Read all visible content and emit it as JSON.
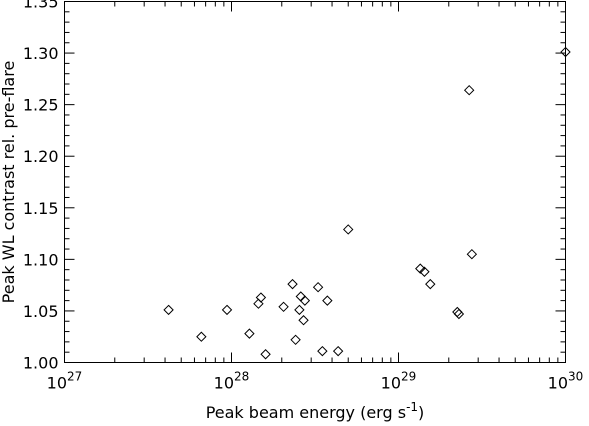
{
  "chart_data": {
    "type": "scatter",
    "title": "",
    "xscale": "log",
    "xlim": [
      1e+27,
      1e+30
    ],
    "ylim": [
      1.0,
      1.35
    ],
    "xlabel": "Peak beam energy (erg s",
    "xlabel_sup": "-1",
    "xlabel_close": ")",
    "ylabel": "Peak WL contrast rel. pre-flare",
    "marker": "diamond",
    "grid": false,
    "x_ticks": [
      {
        "value": 1e+27,
        "base": "10",
        "exp": "27"
      },
      {
        "value": 1e+28,
        "base": "10",
        "exp": "28"
      },
      {
        "value": 1e+29,
        "base": "10",
        "exp": "29"
      },
      {
        "value": 1e+30,
        "base": "10",
        "exp": "30"
      }
    ],
    "y_ticks": [
      {
        "value": 1.0,
        "label": "1.00"
      },
      {
        "value": 1.05,
        "label": "1.05"
      },
      {
        "value": 1.1,
        "label": "1.10"
      },
      {
        "value": 1.15,
        "label": "1.15"
      },
      {
        "value": 1.2,
        "label": "1.20"
      },
      {
        "value": 1.25,
        "label": "1.25"
      },
      {
        "value": 1.3,
        "label": "1.30"
      },
      {
        "value": 1.35,
        "label": "1.35"
      }
    ],
    "points": [
      {
        "x": 4.2e+27,
        "y": 1.051
      },
      {
        "x": 6.6e+27,
        "y": 1.025
      },
      {
        "x": 9.4e+27,
        "y": 1.051
      },
      {
        "x": 1.28e+28,
        "y": 1.028
      },
      {
        "x": 1.45e+28,
        "y": 1.057
      },
      {
        "x": 1.5e+28,
        "y": 1.063
      },
      {
        "x": 1.6e+28,
        "y": 1.008
      },
      {
        "x": 2.05e+28,
        "y": 1.054
      },
      {
        "x": 2.32e+28,
        "y": 1.076
      },
      {
        "x": 2.42e+28,
        "y": 1.022
      },
      {
        "x": 2.55e+28,
        "y": 1.051
      },
      {
        "x": 2.6e+28,
        "y": 1.064
      },
      {
        "x": 2.7e+28,
        "y": 1.041
      },
      {
        "x": 2.75e+28,
        "y": 1.06
      },
      {
        "x": 3.3e+28,
        "y": 1.073
      },
      {
        "x": 3.5e+28,
        "y": 1.011
      },
      {
        "x": 3.75e+28,
        "y": 1.06
      },
      {
        "x": 4.35e+28,
        "y": 1.011
      },
      {
        "x": 5e+28,
        "y": 1.129
      },
      {
        "x": 1.35e+29,
        "y": 1.091
      },
      {
        "x": 1.43e+29,
        "y": 1.088
      },
      {
        "x": 1.55e+29,
        "y": 1.076
      },
      {
        "x": 2.25e+29,
        "y": 1.049
      },
      {
        "x": 2.3e+29,
        "y": 1.047
      },
      {
        "x": 2.65e+29,
        "y": 1.264
      },
      {
        "x": 2.75e+29,
        "y": 1.105
      },
      {
        "x": 1e+30,
        "y": 1.301
      }
    ]
  }
}
